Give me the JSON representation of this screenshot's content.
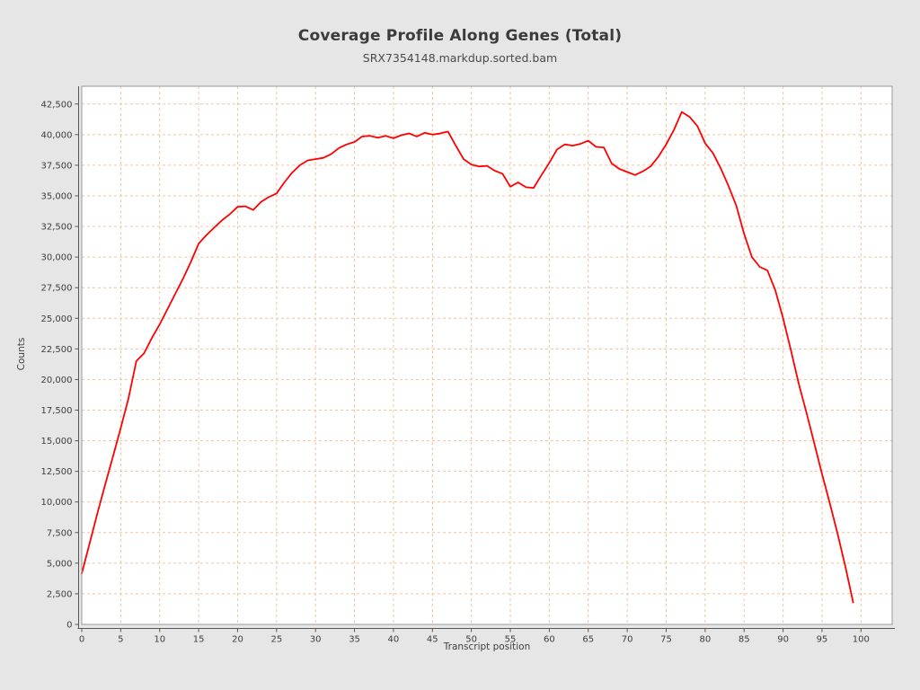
{
  "page": {
    "background": "#e6e6e6"
  },
  "header": {
    "title": "Coverage Profile Along Genes (Total)",
    "subtitle": "SRX7354148.markdup.sorted.bam"
  },
  "chart_data": {
    "type": "line",
    "title": "Coverage Profile Along Genes (Total)",
    "subtitle": "SRX7354148.markdup.sorted.bam",
    "xlabel": "Transcript position",
    "ylabel": "Counts",
    "xlim": [
      0,
      104
    ],
    "ylim": [
      0,
      43950
    ],
    "x_ticks": [
      0,
      5,
      10,
      15,
      20,
      25,
      30,
      35,
      40,
      45,
      50,
      55,
      60,
      65,
      70,
      75,
      80,
      85,
      90,
      95,
      100
    ],
    "y_tick_labels": [
      "0",
      "2,500",
      "5,000",
      "7,500",
      "10,000",
      "12,500",
      "15,000",
      "17,500",
      "20,000",
      "22,500",
      "25,000",
      "27,500",
      "30,000",
      "32,500",
      "35,000",
      "37,500",
      "40,000",
      "42,500"
    ],
    "grid": true,
    "grid_color": "#f3c49b",
    "line_color": "#ff0000",
    "axis_color": "#555555",
    "frame_color": "#999999",
    "tick_label_color": "#3d3d3d",
    "plot_background": "#ffffff",
    "series": [
      {
        "name": "SRX7354148.markdup.sorted.bam",
        "x_start": 0,
        "x_step": 1,
        "values": [
          4150,
          6600,
          9050,
          11400,
          13700,
          16050,
          18450,
          21500,
          22150,
          23400,
          24500,
          25750,
          27000,
          28250,
          29600,
          31100,
          31800,
          32400,
          33000,
          33500,
          34100,
          34150,
          33850,
          34500,
          34900,
          35200,
          36100,
          36900,
          37500,
          37900,
          38000,
          38100,
          38400,
          38900,
          39200,
          39400,
          39850,
          39900,
          39750,
          39900,
          39700,
          39950,
          40100,
          39850,
          40150,
          40000,
          40100,
          40250,
          39100,
          38000,
          37550,
          37400,
          37450,
          37050,
          36800,
          35750,
          36100,
          35700,
          35650,
          36700,
          37700,
          38800,
          39200,
          39100,
          39250,
          39500,
          39000,
          38950,
          37650,
          37200,
          36950,
          36700,
          37000,
          37400,
          38200,
          39200,
          40400,
          41850,
          41450,
          40700,
          39300,
          38500,
          37250,
          35800,
          34200,
          31900,
          30000,
          29200,
          28900,
          27300,
          25000,
          22400,
          19700,
          17300,
          14800,
          12300,
          9900,
          7400,
          4700,
          1800
        ]
      }
    ]
  }
}
